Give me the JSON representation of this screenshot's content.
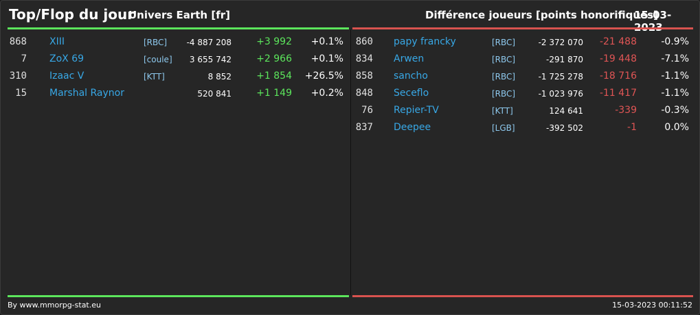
{
  "header": {
    "title": "Top/Flop du jour",
    "universe": "Univers Earth [fr]",
    "category": "Différence joueurs [points honorifiques]",
    "date": "15-03-2023"
  },
  "colors": {
    "top": "#5ce65c",
    "flop": "#d9534f",
    "name_link": "#38a8e6"
  },
  "top": [
    {
      "rank": "868",
      "name": "XIII",
      "alliance": "[RBC]",
      "points": "-4 887 208",
      "diff": "+3 992",
      "pct": "+0.1%"
    },
    {
      "rank": "7",
      "name": "ZoX 69",
      "alliance": "[coule]",
      "points": "3 655 742",
      "diff": "+2 966",
      "pct": "+0.1%"
    },
    {
      "rank": "310",
      "name": "Izaac V",
      "alliance": "[KTT]",
      "points": "8 852",
      "diff": "+1 854",
      "pct": "+26.5%"
    },
    {
      "rank": "15",
      "name": "Marshal Raynor",
      "alliance": "",
      "points": "520 841",
      "diff": "+1 149",
      "pct": "+0.2%"
    }
  ],
  "flop": [
    {
      "rank": "860",
      "name": "papy francky",
      "alliance": "[RBC]",
      "points": "-2 372 070",
      "diff": "-21 488",
      "pct": "-0.9%"
    },
    {
      "rank": "834",
      "name": "Arwen",
      "alliance": "[RBC]",
      "points": "-291 870",
      "diff": "-19 448",
      "pct": "-7.1%"
    },
    {
      "rank": "858",
      "name": "sancho",
      "alliance": "[RBC]",
      "points": "-1 725 278",
      "diff": "-18 716",
      "pct": "-1.1%"
    },
    {
      "rank": "848",
      "name": "Seceflo",
      "alliance": "[RBC]",
      "points": "-1 023 976",
      "diff": "-11 417",
      "pct": "-1.1%"
    },
    {
      "rank": "76",
      "name": "Repier-TV",
      "alliance": "[KTT]",
      "points": "124 641",
      "diff": "-339",
      "pct": "-0.3%"
    },
    {
      "rank": "837",
      "name": "Deepee",
      "alliance": "[LGB]",
      "points": "-392 502",
      "diff": "-1",
      "pct": "0.0%"
    }
  ],
  "footer": {
    "credit": "By www.mmorpg-stat.eu",
    "timestamp": "15-03-2023 00:11:52"
  }
}
